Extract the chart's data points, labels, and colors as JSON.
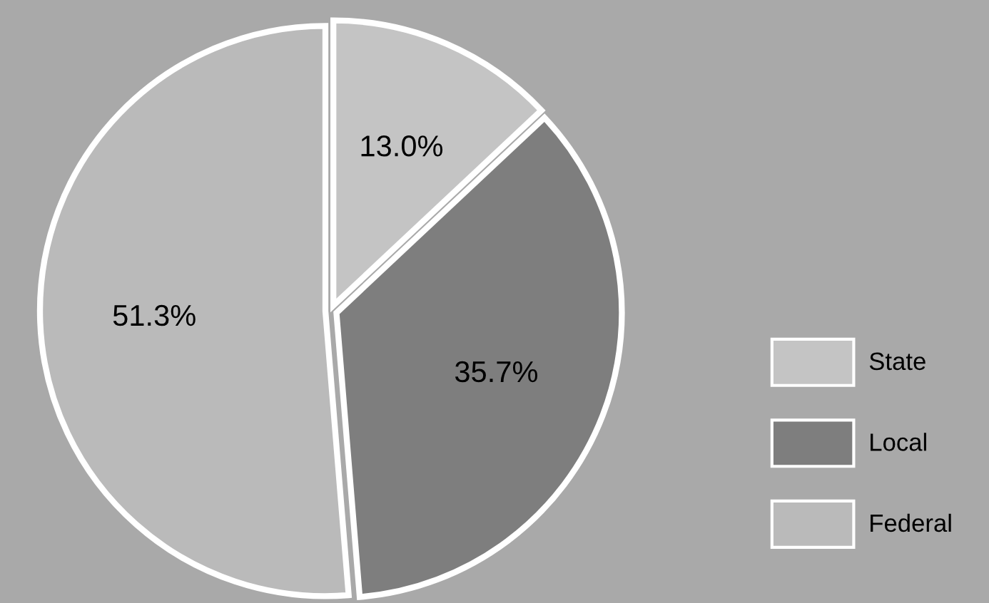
{
  "chart_data": {
    "type": "pie",
    "categories": [
      "State",
      "Local",
      "Federal"
    ],
    "values": [
      13.0,
      35.7,
      51.3
    ],
    "value_labels": [
      "13.0%",
      "35.7%",
      "51.3%"
    ],
    "colors": [
      "#c4c4c4",
      "#7e7e7e",
      "#bababa"
    ],
    "legend": "right"
  }
}
